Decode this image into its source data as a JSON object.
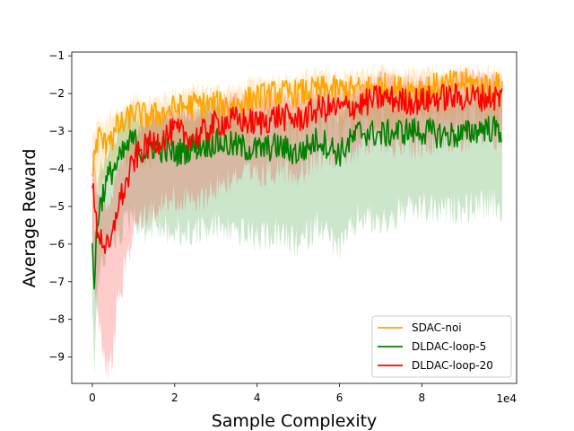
{
  "chart_data": {
    "type": "line",
    "xlabel": "Sample Complexity",
    "ylabel": "Average Reward",
    "x_offset_label": "1e4",
    "xlim": [
      -0.5,
      10.3
    ],
    "ylim": [
      -9.7,
      -0.9
    ],
    "x_ticks": [
      0,
      2,
      4,
      6,
      8
    ],
    "y_ticks": [
      -9,
      -8,
      -7,
      -6,
      -5,
      -4,
      -3,
      -2,
      -1
    ],
    "x_tick_labels": [
      "0",
      "2",
      "4",
      "6",
      "8"
    ],
    "y_tick_labels": [
      "−9",
      "−8",
      "−7",
      "−6",
      "−5",
      "−4",
      "−3",
      "−2",
      "−1"
    ],
    "x_scale_note": "x values in units of 1e4 samples",
    "legend_position": "lower-right",
    "shaded_band": "min-max range across runs",
    "series": [
      {
        "name": "SDAC-noi",
        "color": "#ffa500",
        "band_color": "#ffa500",
        "x": [
          0,
          0.1,
          0.2,
          0.3,
          0.4,
          0.5,
          0.6,
          0.8,
          1.0,
          1.2,
          1.5,
          2.0,
          2.5,
          3.0,
          3.5,
          4.0,
          4.5,
          5.0,
          5.5,
          6.0,
          6.5,
          7.0,
          7.5,
          8.0,
          8.5,
          9.0,
          9.5,
          9.95
        ],
        "values": [
          -4.2,
          -3.3,
          -3.1,
          -3.4,
          -3.0,
          -3.2,
          -2.9,
          -2.8,
          -2.5,
          -2.6,
          -2.6,
          -2.4,
          -2.3,
          -2.3,
          -2.3,
          -2.1,
          -2.0,
          -2.0,
          -1.9,
          -1.9,
          -1.9,
          -1.8,
          -1.9,
          -1.85,
          -1.8,
          -1.7,
          -1.8,
          -1.8
        ],
        "upper": [
          -3.2,
          -2.9,
          -2.7,
          -2.9,
          -2.6,
          -2.7,
          -2.5,
          -2.4,
          -2.1,
          -2.2,
          -2.2,
          -2.0,
          -1.9,
          -1.9,
          -1.9,
          -1.7,
          -1.6,
          -1.6,
          -1.5,
          -1.55,
          -1.5,
          -1.45,
          -1.5,
          -1.5,
          -1.45,
          -1.35,
          -1.45,
          -1.45
        ],
        "lower": [
          -5.2,
          -4.0,
          -3.8,
          -4.0,
          -3.6,
          -3.8,
          -3.5,
          -3.3,
          -3.1,
          -3.2,
          -3.1,
          -3.0,
          -2.9,
          -2.9,
          -2.8,
          -2.6,
          -2.5,
          -2.5,
          -2.4,
          -2.4,
          -2.4,
          -2.3,
          -2.4,
          -2.3,
          -2.3,
          -2.2,
          -2.3,
          -2.3
        ]
      },
      {
        "name": "DLDAC-loop-5",
        "color": "#008000",
        "band_color": "#008000",
        "x": [
          0,
          0.05,
          0.1,
          0.2,
          0.3,
          0.4,
          0.5,
          0.6,
          0.8,
          1.0,
          1.2,
          1.5,
          2.0,
          2.5,
          3.0,
          3.5,
          4.0,
          4.5,
          5.0,
          5.5,
          6.0,
          6.5,
          7.0,
          7.5,
          8.0,
          8.5,
          9.0,
          9.5,
          9.95
        ],
        "values": [
          -5.8,
          -7.5,
          -5.5,
          -4.9,
          -4.5,
          -4.2,
          -4.0,
          -3.9,
          -3.5,
          -3.2,
          -3.6,
          -3.4,
          -3.6,
          -3.4,
          -3.3,
          -3.4,
          -3.5,
          -3.4,
          -3.6,
          -3.2,
          -3.6,
          -3.0,
          -3.1,
          -3.0,
          -3.0,
          -3.1,
          -3.1,
          -2.9,
          -3.0
        ],
        "upper": [
          -4.8,
          -6.0,
          -4.5,
          -4.0,
          -3.7,
          -3.4,
          -3.2,
          -3.1,
          -2.7,
          -2.4,
          -2.8,
          -2.6,
          -2.7,
          -2.5,
          -2.4,
          -2.5,
          -2.6,
          -2.5,
          -2.6,
          -2.3,
          -2.6,
          -2.1,
          -2.2,
          -2.1,
          -2.1,
          -2.2,
          -2.2,
          -2.0,
          -2.1
        ],
        "lower": [
          -7.5,
          -8.7,
          -7.0,
          -6.2,
          -5.8,
          -5.6,
          -5.4,
          -5.3,
          -5.0,
          -4.7,
          -5.2,
          -5.0,
          -5.3,
          -5.2,
          -5.1,
          -5.2,
          -5.4,
          -5.3,
          -5.6,
          -5.0,
          -5.7,
          -4.8,
          -5.0,
          -4.7,
          -4.6,
          -4.7,
          -4.6,
          -4.5,
          -4.6
        ]
      },
      {
        "name": "DLDAC-loop-20",
        "color": "#ff0000",
        "band_color": "#ff0000",
        "x": [
          0,
          0.1,
          0.2,
          0.3,
          0.4,
          0.5,
          0.6,
          0.8,
          1.0,
          1.2,
          1.5,
          2.0,
          2.5,
          3.0,
          3.5,
          4.0,
          4.5,
          5.0,
          5.5,
          6.0,
          6.5,
          7.0,
          7.5,
          8.0,
          8.5,
          9.0,
          9.5,
          9.95
        ],
        "values": [
          -4.5,
          -5.5,
          -5.8,
          -6.0,
          -6.2,
          -5.8,
          -5.0,
          -4.5,
          -3.8,
          -3.5,
          -3.3,
          -3.0,
          -3.2,
          -2.8,
          -2.7,
          -2.8,
          -2.6,
          -2.7,
          -2.4,
          -2.4,
          -2.3,
          -2.1,
          -2.2,
          -2.2,
          -2.1,
          -2.1,
          -2.1,
          -2.1
        ],
        "upper": [
          -3.6,
          -4.5,
          -4.8,
          -5.0,
          -5.0,
          -4.6,
          -4.0,
          -3.6,
          -3.0,
          -2.8,
          -2.6,
          -2.4,
          -2.5,
          -2.2,
          -2.1,
          -2.2,
          -2.0,
          -2.1,
          -1.9,
          -1.9,
          -1.8,
          -1.6,
          -1.7,
          -1.7,
          -1.6,
          -1.6,
          -1.6,
          -1.6
        ],
        "lower": [
          -5.8,
          -7.2,
          -8.0,
          -8.6,
          -9.0,
          -8.4,
          -7.2,
          -6.2,
          -5.2,
          -4.8,
          -4.6,
          -4.3,
          -4.5,
          -4.0,
          -3.7,
          -3.8,
          -3.5,
          -3.6,
          -3.2,
          -3.1,
          -3.0,
          -2.8,
          -2.9,
          -2.9,
          -2.7,
          -2.8,
          -2.7,
          -2.7
        ]
      }
    ]
  }
}
